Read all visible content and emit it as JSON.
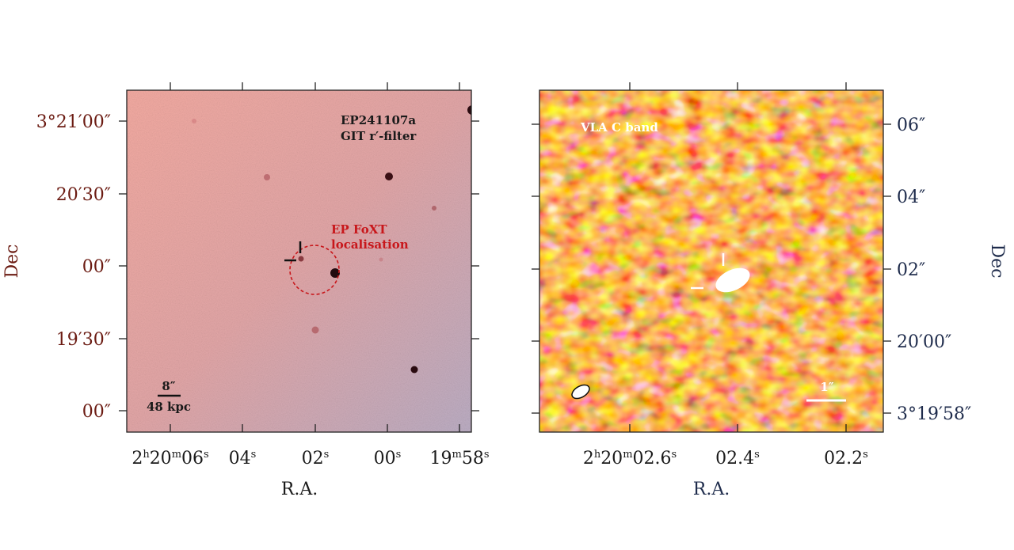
{
  "top_fragment": "",
  "left_panel": {
    "label_line1": "EP241107a",
    "label_line2": "GIT r′-filter",
    "annot_line1": "EP FoXT",
    "annot_line2": "localisation",
    "scale_top": "8″",
    "scale_bottom": "48 kpc",
    "dec_ticks": [
      "3°21′00″",
      "20′30″",
      "00″",
      "19′30″",
      "00″"
    ],
    "ra_ticks": [
      "2h20m06s",
      "04s",
      "02s",
      "00s",
      "19m58s"
    ],
    "xlabel": "R.A.",
    "ylabel": "Dec",
    "colors": {
      "axis_text": "#6b1b12",
      "annotation": "#c8171b",
      "background_top_left": "#f2aaa2",
      "background_bottom_right": "#c2adc0"
    }
  },
  "right_panel": {
    "label": "VLA C band",
    "scale_label": "1″",
    "dec_ticks": [
      "06″",
      "04″",
      "02″",
      "20′00″",
      "3°19′58″"
    ],
    "ra_ticks": [
      "2h20m02.6s",
      "02.4s",
      "02.2s"
    ],
    "xlabel": "R.A.",
    "ylabel": "Dec",
    "colors": {
      "axis_text": "#1f2c4c",
      "map_low": "#7a1400",
      "map_mid": "#e8501a",
      "map_high": "#ffffff"
    }
  }
}
